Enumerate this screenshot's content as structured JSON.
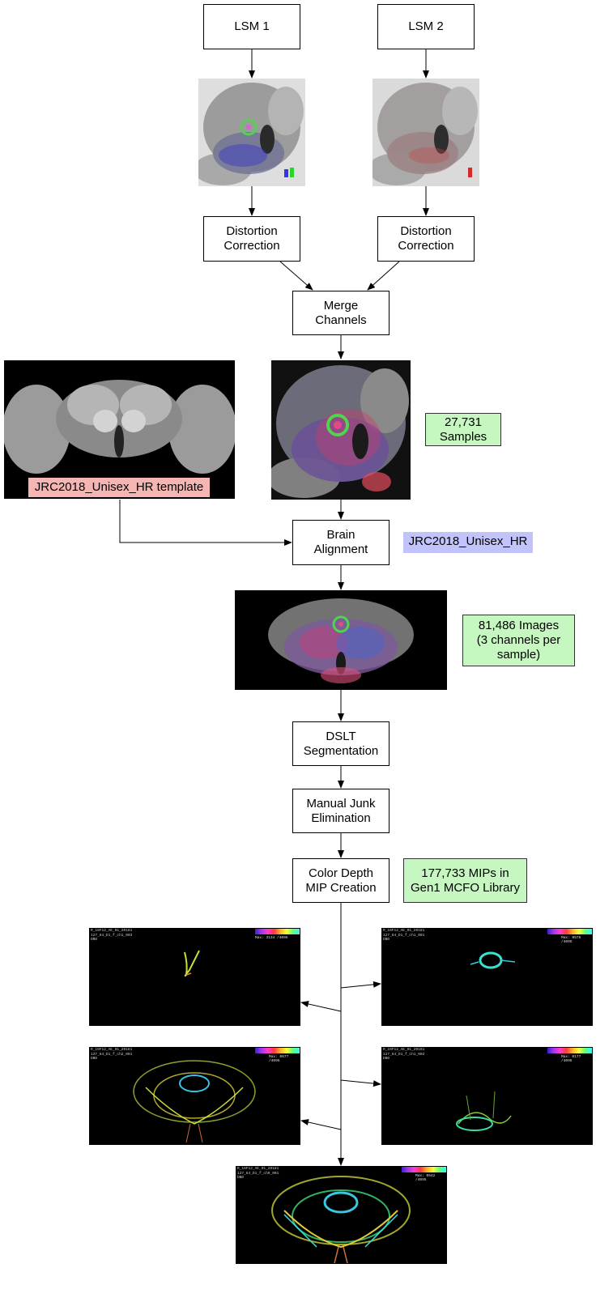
{
  "nodes": {
    "lsm1": "LSM 1",
    "lsm2": "LSM 2",
    "distortion1": "Distortion\nCorrection",
    "distortion2": "Distortion\nCorrection",
    "merge": "Merge\nChannels",
    "brain_alignment": "Brain\nAlignment",
    "dslt": "DSLT\nSegmentation",
    "junk": "Manual Junk\nElimination",
    "mip": "Color Depth\nMIP Creation"
  },
  "stats": {
    "samples": "27,731\nSamples",
    "images": "81,486 Images\n(3 channels per\nsample)",
    "mips": "177,733 MIPs in\nGen1 MCFO Library"
  },
  "labels": {
    "template": "JRC2018_Unisex_HR template",
    "alignment_space": "JRC2018_Unisex_HR"
  },
  "mip_outputs": [
    {
      "text": "R_16F12_AE_01_20181\n127_64_D1_f_ch1_003\nDBD",
      "max": "Max: 3134 /4095"
    },
    {
      "text": "R_16F12_AE_01_20181\n127_64_D1_f_ch1_001\nDBD",
      "max": "Max: 0575 /4095"
    },
    {
      "text": "R_16F12_AE_01_20181\n127_64_D1_f_ch2_001\nDBD",
      "max": "Max: 0677 /4095"
    },
    {
      "text": "R_16F12_AE_01_20181\n127_64_D1_f_ch1_002\nDBD",
      "max": "Max: 0177 /4095"
    },
    {
      "text": "R_16F12_AE_01_20181\n127_64_D1_f_ch0_001\nDBD",
      "max": "Max: 0542 /4095"
    }
  ],
  "colors": {
    "stat_fill": "#c7f7c0",
    "template_label_fill": "#f5b6b3",
    "alignment_label_fill": "#c3c3fb",
    "image_background": "#000000"
  }
}
